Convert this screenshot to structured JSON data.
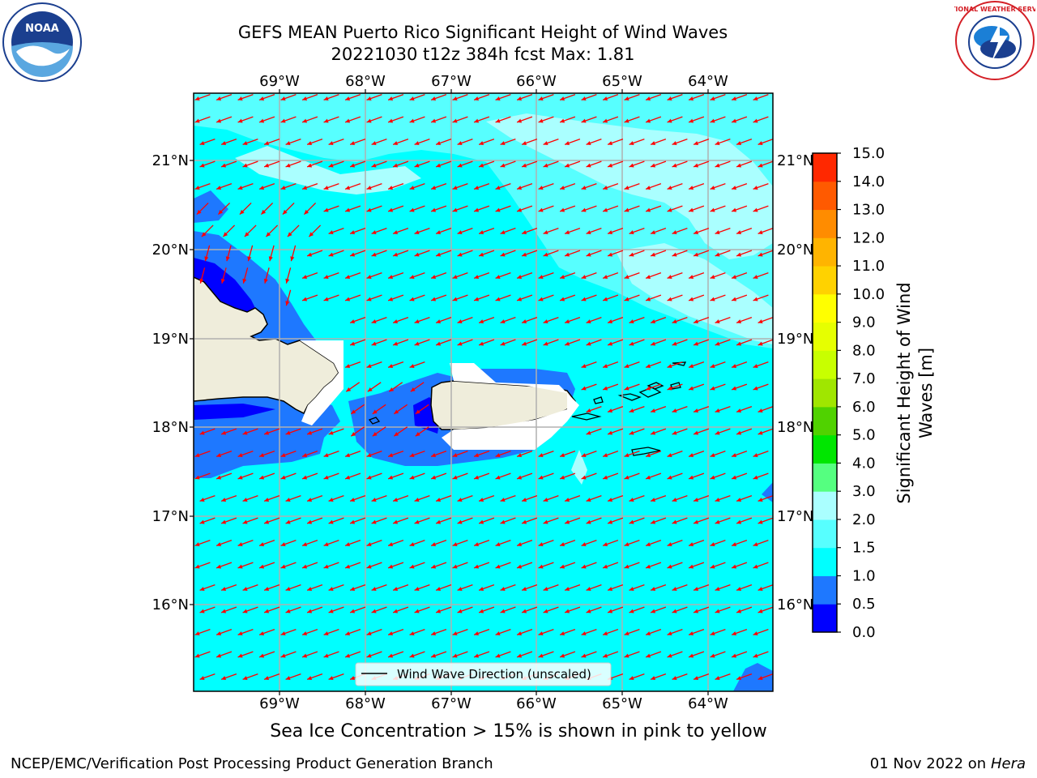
{
  "title": {
    "line1": "GEFS MEAN Puerto Rico Significant Height of Wind Waves",
    "line2": "20221030 t12z 384h fcst   Max: 1.81"
  },
  "map": {
    "lon_labels": [
      "69°W",
      "68°W",
      "67°W",
      "66°W",
      "65°W",
      "64°W"
    ],
    "lat_labels": [
      "21°N",
      "20°N",
      "19°N",
      "18°N",
      "17°N",
      "16°N"
    ],
    "legend_label": "Wind Wave Direction (unscaled)",
    "arrow_color": "#ff0000"
  },
  "colorbar": {
    "title_line1": "Significant Height of Wind",
    "title_line2": "Waves [m]",
    "tick_labels": [
      "0.0",
      "0.5",
      "1.0",
      "1.5",
      "2.0",
      "3.0",
      "4.0",
      "5.0",
      "6.0",
      "7.0",
      "8.0",
      "9.0",
      "10.0",
      "11.0",
      "12.0",
      "13.0",
      "14.0",
      "15.0"
    ],
    "colors": [
      "#0000ff",
      "#1e78ff",
      "#00ffff",
      "#57ffff",
      "#aaffff",
      "#55ff80",
      "#00e600",
      "#50d200",
      "#a0e600",
      "#c8ff00",
      "#e6ff00",
      "#ffff00",
      "#ffd200",
      "#ffb400",
      "#ff8c00",
      "#ff5a00",
      "#ff2800"
    ]
  },
  "note": "Sea Ice Concentration > 15% is shown in pink to yellow",
  "footer": {
    "left": "NCEP/EMC/Verification Post Processing Product Generation Branch",
    "right_date": "01 Nov 2022 on",
    "right_host": "Hera"
  },
  "logos": {
    "noaa_text": "NOAA",
    "nws_text": "NATIONAL WEATHER SERVICE"
  }
}
